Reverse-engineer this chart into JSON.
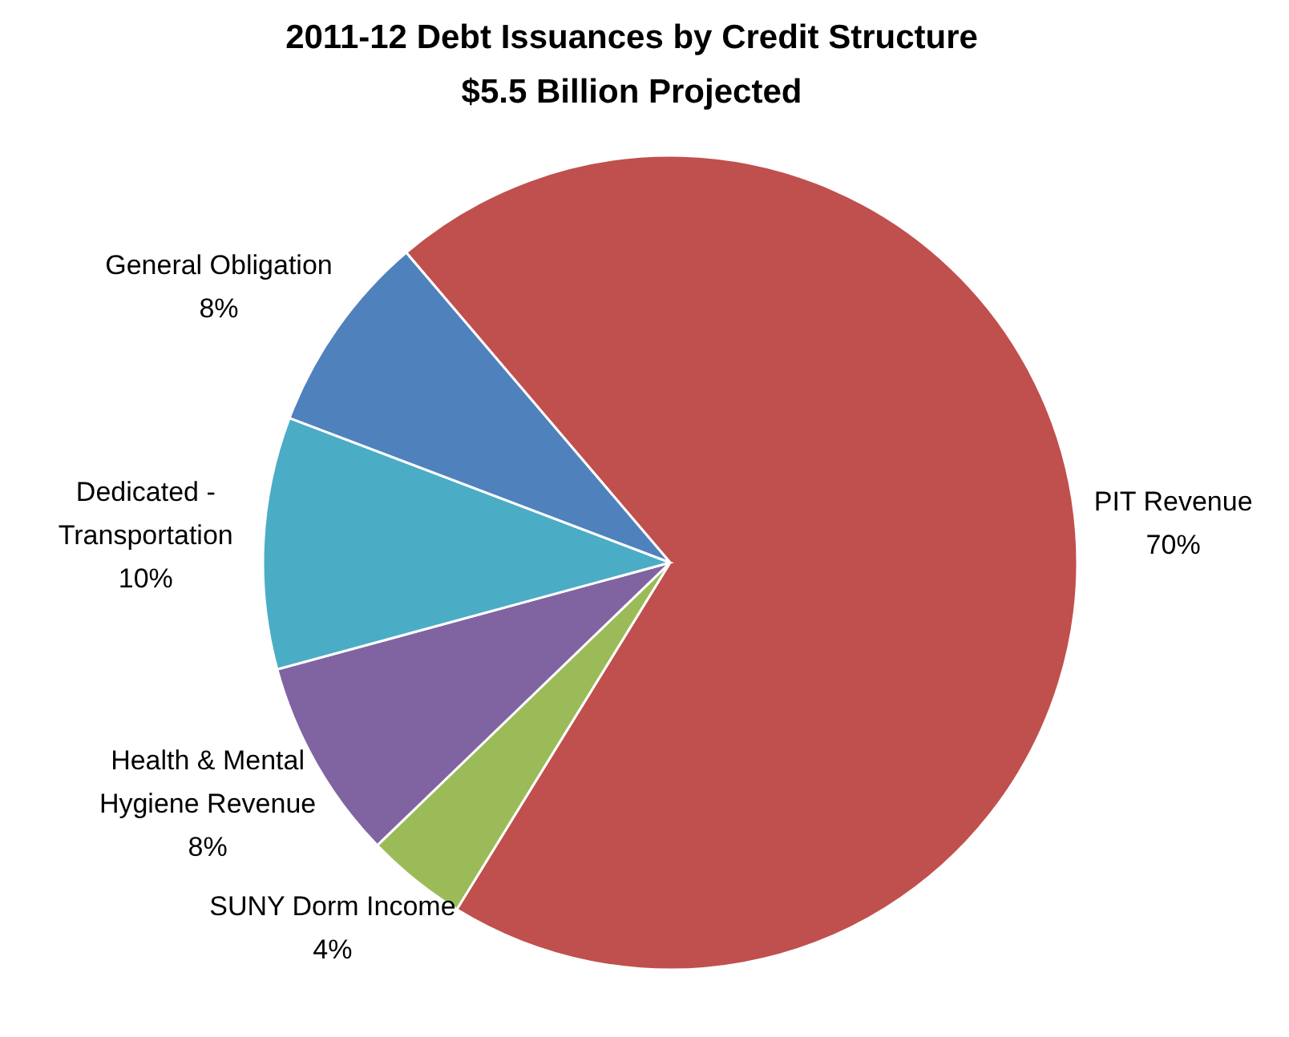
{
  "chart_data": {
    "type": "pie",
    "title": "2011-12 Debt Issuances by Credit Structure",
    "subtitle": "$5.5 Billion Projected",
    "categories": [
      "PIT Revenue",
      "SUNY Dorm Income",
      "Health & Mental Hygiene Revenue",
      "Dedicated - Transportation",
      "General Obligation"
    ],
    "values": [
      70,
      4,
      8,
      10,
      8
    ],
    "value_labels": [
      "70%",
      "4%",
      "8%",
      "10%",
      "8%"
    ],
    "colors": [
      "#c0504d",
      "#9bbb59",
      "#8064a2",
      "#4bacc6",
      "#4f81bd"
    ]
  }
}
